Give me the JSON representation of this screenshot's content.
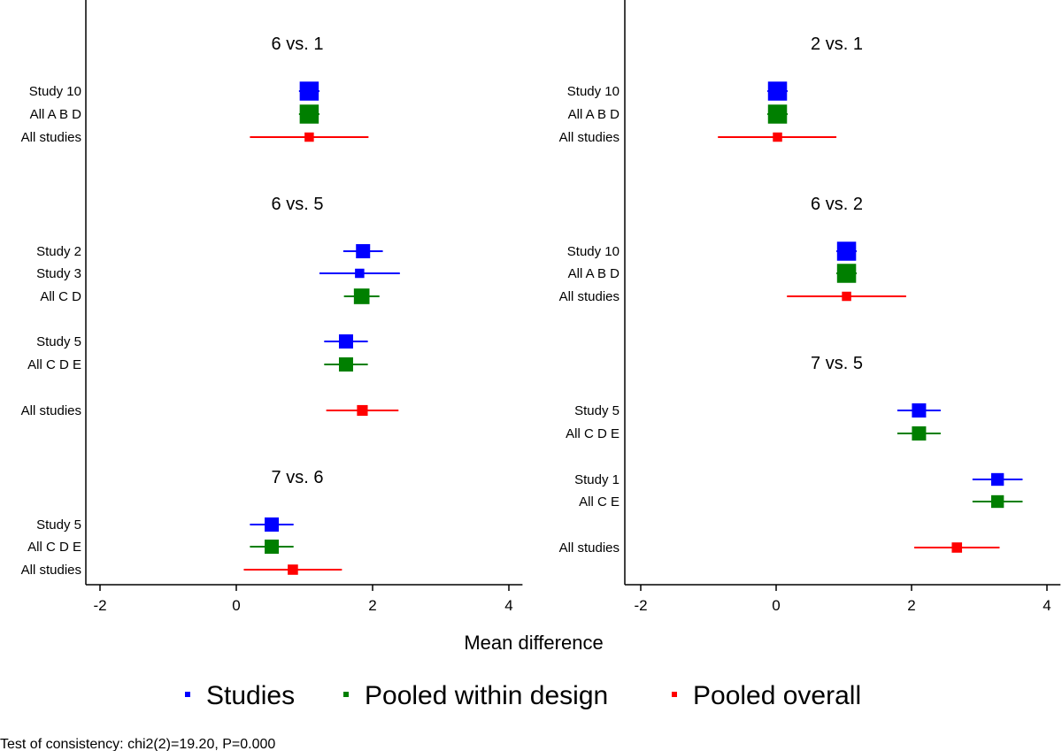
{
  "chart_data": {
    "type": "forest",
    "xlabel": "Mean difference",
    "xlim": [
      -2.2,
      4.2
    ],
    "xticks": [
      -2,
      0,
      2,
      4
    ],
    "xtick_labels": [
      "-2",
      "0",
      "2",
      "4"
    ],
    "colors": {
      "studies": "#0000ff",
      "pooled_within_design": "#007f00",
      "pooled_overall": "#ff0000"
    },
    "legend": {
      "position": "bottom",
      "items": [
        {
          "key": "studies",
          "label": "Studies",
          "color": "#0000ff"
        },
        {
          "key": "pooled_within_design",
          "label": "Pooled within design",
          "color": "#007f00"
        },
        {
          "key": "pooled_overall",
          "label": "Pooled overall",
          "color": "#ff0000"
        }
      ]
    },
    "panels": [
      {
        "groups": [
          {
            "title": "6 vs. 1",
            "rows": [
              {
                "label": "Study 10",
                "kind": "studies",
                "est": 1.07,
                "lo": 0.92,
                "hi": 1.22,
                "weight": 3
              },
              {
                "label": "All A B D",
                "kind": "pooled_within_design",
                "est": 1.07,
                "lo": 0.92,
                "hi": 1.22,
                "weight": 3
              },
              {
                "label": "All studies",
                "kind": "pooled_overall",
                "est": 1.07,
                "lo": 0.2,
                "hi": 1.94,
                "weight": 1
              }
            ]
          },
          {
            "title": "6 vs. 5",
            "rows": [
              {
                "label": "Study 2",
                "kind": "studies",
                "est": 1.86,
                "lo": 1.57,
                "hi": 2.15,
                "weight": 2
              },
              {
                "label": "Study 3",
                "kind": "studies",
                "est": 1.81,
                "lo": 1.22,
                "hi": 2.4,
                "weight": 1
              },
              {
                "label": "All C D",
                "kind": "pooled_within_design",
                "est": 1.84,
                "lo": 1.58,
                "hi": 2.1,
                "weight": 2.3
              },
              {
                "label": "Study 5",
                "kind": "studies",
                "est": 1.61,
                "lo": 1.29,
                "hi": 1.93,
                "weight": 2
              },
              {
                "label": "All C D E",
                "kind": "pooled_within_design",
                "est": 1.61,
                "lo": 1.29,
                "hi": 1.93,
                "weight": 2
              },
              {
                "label": "All studies",
                "kind": "pooled_overall",
                "est": 1.85,
                "lo": 1.32,
                "hi": 2.38,
                "weight": 1.3
              }
            ]
          },
          {
            "title": "7 vs. 6",
            "rows": [
              {
                "label": "Study 5",
                "kind": "studies",
                "est": 0.52,
                "lo": 0.2,
                "hi": 0.84,
                "weight": 2
              },
              {
                "label": "All C D E",
                "kind": "pooled_within_design",
                "est": 0.52,
                "lo": 0.2,
                "hi": 0.84,
                "weight": 2
              },
              {
                "label": "All studies",
                "kind": "pooled_overall",
                "est": 0.83,
                "lo": 0.11,
                "hi": 1.55,
                "weight": 1.2
              }
            ]
          }
        ]
      },
      {
        "groups": [
          {
            "title": "2 vs. 1",
            "rows": [
              {
                "label": "Study 10",
                "kind": "studies",
                "est": 0.02,
                "lo": -0.13,
                "hi": 0.17,
                "weight": 3
              },
              {
                "label": "All A B D",
                "kind": "pooled_within_design",
                "est": 0.02,
                "lo": -0.13,
                "hi": 0.17,
                "weight": 3
              },
              {
                "label": "All studies",
                "kind": "pooled_overall",
                "est": 0.02,
                "lo": -0.86,
                "hi": 0.89,
                "weight": 1
              }
            ]
          },
          {
            "title": "6 vs. 2",
            "rows": [
              {
                "label": "Study 10",
                "kind": "studies",
                "est": 1.04,
                "lo": 0.89,
                "hi": 1.19,
                "weight": 3
              },
              {
                "label": "All A B D",
                "kind": "pooled_within_design",
                "est": 1.04,
                "lo": 0.89,
                "hi": 1.19,
                "weight": 3
              },
              {
                "label": "All studies",
                "kind": "pooled_overall",
                "est": 1.04,
                "lo": 0.16,
                "hi": 1.92,
                "weight": 1
              }
            ]
          },
          {
            "title": "7 vs. 5",
            "rows": [
              {
                "label": "Study 5",
                "kind": "studies",
                "est": 2.11,
                "lo": 1.79,
                "hi": 2.43,
                "weight": 2
              },
              {
                "label": "All C D E",
                "kind": "pooled_within_design",
                "est": 2.11,
                "lo": 1.79,
                "hi": 2.43,
                "weight": 2
              },
              {
                "label": "Study 1",
                "kind": "studies",
                "est": 3.27,
                "lo": 2.9,
                "hi": 3.64,
                "weight": 1.7
              },
              {
                "label": "All C E",
                "kind": "pooled_within_design",
                "est": 3.27,
                "lo": 2.9,
                "hi": 3.64,
                "weight": 1.7
              },
              {
                "label": "All studies",
                "kind": "pooled_overall",
                "est": 2.67,
                "lo": 2.04,
                "hi": 3.3,
                "weight": 1.2
              }
            ]
          }
        ]
      }
    ]
  },
  "note": "Test of consistency: chi2(2)=19.20, P=0.000"
}
